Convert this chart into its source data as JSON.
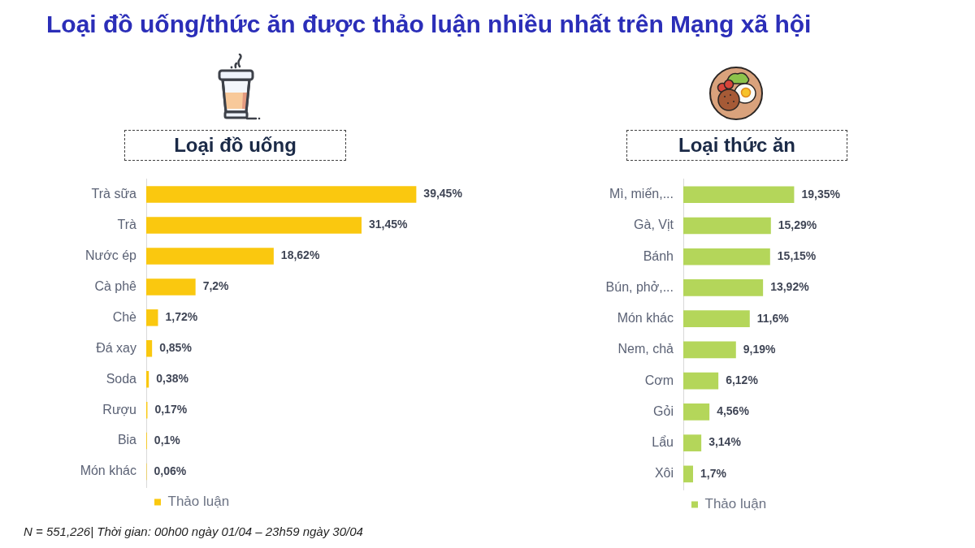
{
  "chart_data": [
    {
      "type": "bar",
      "orientation": "horizontal",
      "title": "Loại đồ uống/thức ăn được thảo luận nhiều nhất trên Mạng xã hội",
      "subtitle": "Loại đồ uống",
      "categories": [
        "Trà sữa",
        "Trà",
        "Nước ép",
        "Cà phê",
        "Chè",
        "Đá xay",
        "Soda",
        "Rượu",
        "Bia",
        "Món khác"
      ],
      "series": [
        {
          "name": "Thảo luận",
          "color": "#fac80f",
          "values": [
            39.45,
            31.45,
            18.62,
            7.2,
            1.72,
            0.85,
            0.38,
            0.17,
            0.1,
            0.06
          ],
          "value_labels": [
            "39,45%",
            "31,45%",
            "18,62%",
            "7,2%",
            "1,72%",
            "0,85%",
            "0,38%",
            "0,17%",
            "0,1%",
            "0,06%"
          ]
        }
      ],
      "legend": "bottom left",
      "tick_labels": "y",
      "annotations": [
        "N = 551,226| Thời gian: 00h00 ngày 01/04 – 23h59 ngày 30/04"
      ]
    },
    {
      "type": "bar",
      "orientation": "horizontal",
      "subtitle": "Loại thức ăn",
      "categories": [
        "Mì, miến,...",
        "Gà, Vịt",
        "Bánh",
        "Bún, phở,...",
        "Món khác",
        "Nem, chả",
        "Cơm",
        "Gỏi",
        "Lẩu",
        "Xôi"
      ],
      "series": [
        {
          "name": "Thảo luận",
          "color": "#b4d65a",
          "values": [
            19.35,
            15.29,
            15.15,
            13.92,
            11.6,
            9.19,
            6.12,
            4.56,
            3.14,
            1.7
          ],
          "value_labels": [
            "19,35%",
            "15,29%",
            "15,15%",
            "13,92%",
            "11,6%",
            "9,19%",
            "6,12%",
            "4,56%",
            "3,14%",
            "1,7%"
          ]
        }
      ],
      "legend": "bottom left",
      "tick_labels": "y"
    }
  ]
}
